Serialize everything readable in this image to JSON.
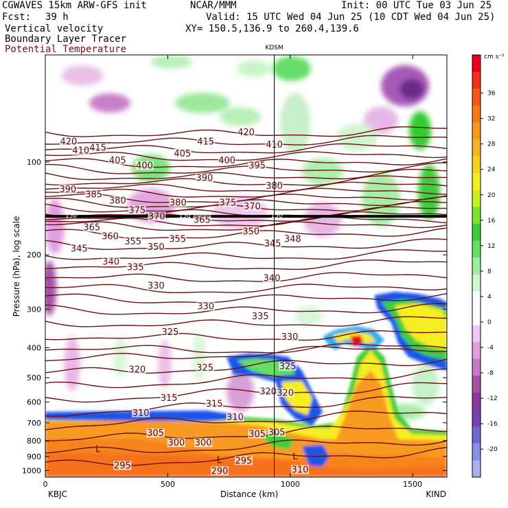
{
  "header": {
    "model": "CGWAVES 15km ARW-GFS init",
    "org": "NCAR/MMM",
    "init": "Init: 00 UTC Tue 03 Jun 25",
    "fcst_label": "Fcst:",
    "fcst_value": "39 h",
    "valid": "Valid: 15 UTC Wed 04 Jun 25 (10 CDT Wed 04 Jun 25)",
    "field1": "Vertical velocity",
    "field2": "Boundary Layer Tracer",
    "field3": "Potential Temperature",
    "xy": "XY= 150.5,136.9 to 260.4,139.6"
  },
  "colors": {
    "theta": "#6b0f0f",
    "field3_text": "#7a1010"
  },
  "chart_data": {
    "type": "heatmap",
    "title": "",
    "xlabel": "Distance (km)",
    "ylabel": "Pressure (hPa), log scale",
    "xlim": [
      0,
      1640
    ],
    "ylim_hPa": [
      1050,
      45
    ],
    "y_scale": "log",
    "x_ticks": [
      "0",
      "500",
      "1000",
      "1500"
    ],
    "x_tick_values": [
      0,
      500,
      1000,
      1500
    ],
    "y_ticks": [
      "100",
      "200",
      "300",
      "400",
      "500",
      "600",
      "700",
      "800",
      "900",
      "1000"
    ],
    "y_tick_values": [
      100,
      200,
      300,
      400,
      500,
      600,
      700,
      800,
      900,
      1000
    ],
    "station_top": "KDSM",
    "station_top_km": 935,
    "station_left": "KBJC",
    "station_right": "KIND",
    "tropopause_label": "150",
    "tropopause_hPa": 150,
    "colorbar_units": "cm s⁻¹",
    "colorbar_ticks": [
      "36",
      "32",
      "28",
      "24",
      "20",
      "16",
      "12",
      "8",
      "4",
      "0",
      "-4",
      "-8",
      "-12",
      "-16",
      "-20"
    ],
    "colorbar_colors": [
      "#e8001a",
      "#f0301a",
      "#f5581a",
      "#f57a1a",
      "#f89a20",
      "#f8b428",
      "#f5d020",
      "#f5ee20",
      "#c8f020",
      "#7ee030",
      "#40cc40",
      "#66dd66",
      "#a0eca0",
      "#d2f6d2",
      "#ffffff",
      "#ffffff",
      "#f2c8f2",
      "#e0a0e0",
      "#c878c8",
      "#a850a8",
      "#8a3a9a",
      "#7a40b0",
      "#7068d0",
      "#8a90e8",
      "#a8b0f0"
    ],
    "theta_labels": [
      {
        "v": "420",
        "x": 95,
        "p": 87
      },
      {
        "v": "410",
        "x": 145,
        "p": 93
      },
      {
        "v": "415",
        "x": 215,
        "p": 91
      },
      {
        "v": "405",
        "x": 295,
        "p": 100
      },
      {
        "v": "400",
        "x": 405,
        "p": 104
      },
      {
        "v": "405",
        "x": 560,
        "p": 95
      },
      {
        "v": "415",
        "x": 655,
        "p": 87
      },
      {
        "v": "420",
        "x": 820,
        "p": 81
      },
      {
        "v": "400",
        "x": 742,
        "p": 100
      },
      {
        "v": "395",
        "x": 865,
        "p": 104
      },
      {
        "v": "410",
        "x": 935,
        "p": 89
      },
      {
        "v": "390",
        "x": 92,
        "p": 124
      },
      {
        "v": "385",
        "x": 198,
        "p": 129
      },
      {
        "v": "380",
        "x": 295,
        "p": 135
      },
      {
        "v": "375",
        "x": 375,
        "p": 145
      },
      {
        "v": "370",
        "x": 455,
        "p": 152
      },
      {
        "v": "380",
        "x": 542,
        "p": 137
      },
      {
        "v": "390",
        "x": 650,
        "p": 114
      },
      {
        "v": "375",
        "x": 745,
        "p": 137
      },
      {
        "v": "370",
        "x": 845,
        "p": 141
      },
      {
        "v": "380",
        "x": 935,
        "p": 121
      },
      {
        "v": "365",
        "x": 190,
        "p": 165
      },
      {
        "v": "360",
        "x": 265,
        "p": 176
      },
      {
        "v": "355",
        "x": 358,
        "p": 183
      },
      {
        "v": "350",
        "x": 452,
        "p": 191
      },
      {
        "v": "355",
        "x": 540,
        "p": 180
      },
      {
        "v": "365",
        "x": 640,
        "p": 156
      },
      {
        "v": "345",
        "x": 138,
        "p": 193
      },
      {
        "v": "340",
        "x": 268,
        "p": 213
      },
      {
        "v": "335",
        "x": 368,
        "p": 222
      },
      {
        "v": "350",
        "x": 840,
        "p": 170
      },
      {
        "v": "345",
        "x": 928,
        "p": 186
      },
      {
        "v": "348",
        "x": 1010,
        "p": 180
      },
      {
        "v": "340",
        "x": 925,
        "p": 241
      },
      {
        "v": "330",
        "x": 452,
        "p": 255
      },
      {
        "v": "330",
        "x": 655,
        "p": 297
      },
      {
        "v": "335",
        "x": 878,
        "p": 320
      },
      {
        "v": "330",
        "x": 998,
        "p": 373
      },
      {
        "v": "325",
        "x": 510,
        "p": 360
      },
      {
        "v": "325",
        "x": 652,
        "p": 470
      },
      {
        "v": "325",
        "x": 990,
        "p": 465
      },
      {
        "v": "320",
        "x": 375,
        "p": 476
      },
      {
        "v": "320",
        "x": 910,
        "p": 561
      },
      {
        "v": "320",
        "x": 980,
        "p": 566
      },
      {
        "v": "315",
        "x": 505,
        "p": 588
      },
      {
        "v": "315",
        "x": 690,
        "p": 615
      },
      {
        "v": "310",
        "x": 390,
        "p": 658
      },
      {
        "v": "310",
        "x": 775,
        "p": 680
      },
      {
        "v": "305",
        "x": 450,
        "p": 765
      },
      {
        "v": "305",
        "x": 865,
        "p": 770
      },
      {
        "v": "305",
        "x": 945,
        "p": 760
      },
      {
        "v": "300",
        "x": 535,
        "p": 822
      },
      {
        "v": "300",
        "x": 645,
        "p": 822
      },
      {
        "v": "295",
        "x": 315,
        "p": 975
      },
      {
        "v": "295",
        "x": 810,
        "p": 940
      },
      {
        "v": "290",
        "x": 712,
        "p": 1015
      },
      {
        "v": "310",
        "x": 1040,
        "p": 1005
      }
    ],
    "symbols": [
      {
        "s": "L",
        "x": 205,
        "p": 870
      },
      {
        "s": "L",
        "x": 700,
        "p": 945
      },
      {
        "s": "L",
        "x": 1010,
        "p": 920
      }
    ]
  }
}
